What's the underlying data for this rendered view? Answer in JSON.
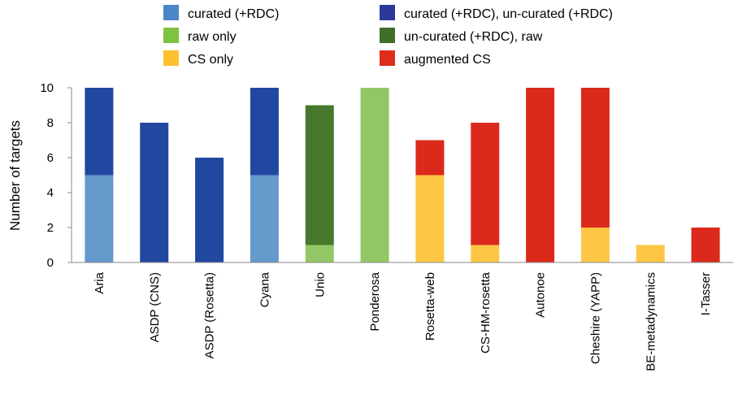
{
  "chart_data": {
    "type": "bar",
    "stacked": true,
    "ylabel": "Number of targets",
    "xlabel": "",
    "ylim": [
      0,
      10
    ],
    "yticks": [
      0,
      2,
      4,
      6,
      8,
      10
    ],
    "grid": false,
    "legend_position": "top",
    "categories": [
      "Aria",
      "ASDP (CNS)",
      "ASDP (Rosetta)",
      "Cyana",
      "Unio",
      "Ponderosa",
      "Rosetta-web",
      "CS-HM-rosetta",
      "Autonoe",
      "Cheshire (YAPP)",
      "BE-metadynamics",
      "I-Tasser"
    ],
    "series": [
      {
        "name": "curated (+RDC)",
        "color": "#6699cc",
        "legend_color": "#4a86c8",
        "values": [
          5,
          0,
          0,
          5,
          0,
          0,
          0,
          0,
          0,
          0,
          0,
          0
        ]
      },
      {
        "name": "curated (+RDC), un-curated (+RDC)",
        "color": "#2147a0",
        "legend_color": "#2b3a98",
        "values": [
          5,
          8,
          6,
          5,
          0,
          0,
          0,
          0,
          0,
          0,
          0,
          0
        ]
      },
      {
        "name": "raw only",
        "color": "#93c766",
        "legend_color": "#7ec242",
        "values": [
          0,
          0,
          0,
          0,
          1,
          10,
          0,
          0,
          0,
          0,
          0,
          0
        ]
      },
      {
        "name": "un-curated (+RDC), raw",
        "color": "#47782c",
        "legend_color": "#3f6f27",
        "values": [
          0,
          0,
          0,
          0,
          8,
          0,
          0,
          0,
          0,
          0,
          0,
          0
        ]
      },
      {
        "name": "CS only",
        "color": "#fdc645",
        "legend_color": "#fdc02f",
        "values": [
          0,
          0,
          0,
          0,
          0,
          0,
          5,
          1,
          0,
          2,
          1,
          0
        ]
      },
      {
        "name": "augmented CS",
        "color": "#db2a1c",
        "legend_color": "#de2d1b",
        "values": [
          0,
          0,
          0,
          0,
          0,
          0,
          2,
          7,
          10,
          8,
          0,
          2
        ]
      }
    ]
  }
}
